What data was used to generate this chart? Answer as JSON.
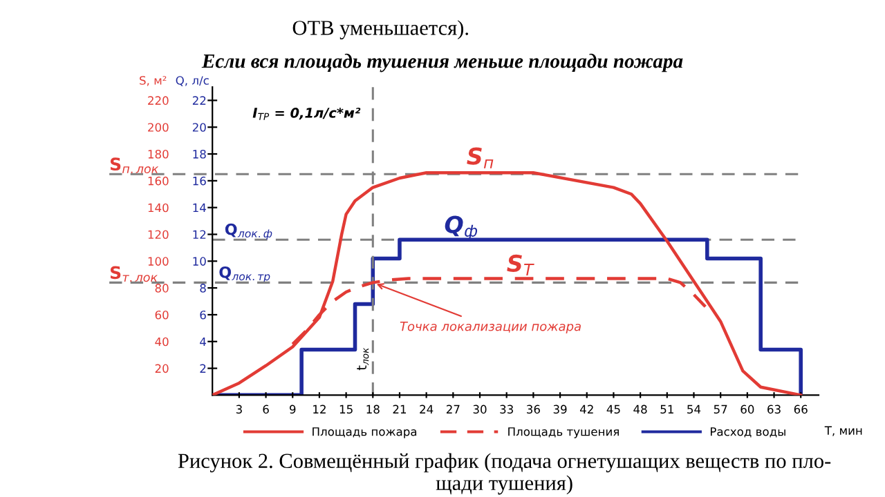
{
  "chart_data": {
    "type": "line",
    "title": "Если вся площадь тушения меньше площади пожара",
    "xlabel": "T, мин",
    "ylabel": "S, м²",
    "y2label": "Q, л/с",
    "x": [
      0,
      3,
      6,
      9,
      12,
      13.5,
      14.5,
      15,
      16,
      18,
      21,
      24,
      36,
      45,
      47,
      48,
      51,
      54,
      57,
      59.5,
      61.5,
      66
    ],
    "series": [
      {
        "name": "Площадь пожара",
        "color": "#e23b35",
        "line_style": "solid",
        "values": [
          0,
          9,
          22,
          36,
          58,
          85,
          120,
          135,
          145,
          155,
          162,
          166,
          166,
          155,
          150,
          143,
          115,
          85,
          55,
          18,
          6,
          0
        ]
      },
      {
        "name": "Площадь тушения",
        "color": "#e23b35",
        "line_style": "dashed",
        "x": [
          9,
          10.5,
          12,
          13.5,
          15,
          16.5,
          18,
          20,
          22,
          51,
          52.5,
          54,
          55.3
        ],
        "values": [
          38,
          48,
          60,
          70,
          77,
          81,
          84,
          86,
          87,
          87,
          84,
          75,
          66
        ]
      },
      {
        "name": "Расход воды",
        "color": "#1f2a9e",
        "type": "step",
        "axis": "y2",
        "x": [
          0,
          10,
          16,
          18,
          21,
          55.5,
          61.5,
          66
        ],
        "values": [
          0,
          3.4,
          6.8,
          10.2,
          11.6,
          10.2,
          3.4,
          0
        ]
      }
    ],
    "xlim": [
      0,
      68
    ],
    "xticks": [
      3,
      6,
      9,
      12,
      15,
      18,
      21,
      24,
      27,
      30,
      33,
      36,
      39,
      42,
      45,
      48,
      51,
      54,
      57,
      60,
      63,
      66
    ],
    "ylim": [
      0,
      230
    ],
    "yticks": [
      20,
      40,
      60,
      80,
      100,
      120,
      140,
      160,
      180,
      200,
      220
    ],
    "y2lim": [
      0,
      23
    ],
    "y2ticks": [
      2,
      4,
      6,
      8,
      10,
      12,
      14,
      16,
      18,
      20,
      22
    ],
    "ref_lines": [
      {
        "axis": "y",
        "value": 165,
        "label": "S$_{п.лок}$",
        "color": "#808080",
        "line_style": "dashed"
      },
      {
        "axis": "y2",
        "value": 11.6,
        "label": "Q$_{лок.ф}$",
        "color": "#808080",
        "line_style": "dashed"
      },
      {
        "axis": "y",
        "value": 84,
        "label": "S$_{т.лок}$",
        "color": "#808080",
        "line_style": "dashed"
      },
      {
        "axis": "x",
        "value": 18,
        "label": "t$_{лок}$",
        "color": "#808080",
        "line_style": "dashed"
      }
    ],
    "annotations": [
      {
        "text": "Точка локализации пожара",
        "x": 18,
        "y": 84
      },
      "S$_{п}$",
      "Q$_{ф}$",
      "S$_{Т}$",
      "Q$_{лок.тр}$",
      "I$_{ТР}$ = 0,1л/с*м²",
      "ОТВ уменьшается).",
      "Рисунок 2. Совмещённый график (подача огнетушащих веществ по пло-\nщади тушения)"
    ],
    "legend": "bottom",
    "grid": false,
    "marker": "none"
  }
}
